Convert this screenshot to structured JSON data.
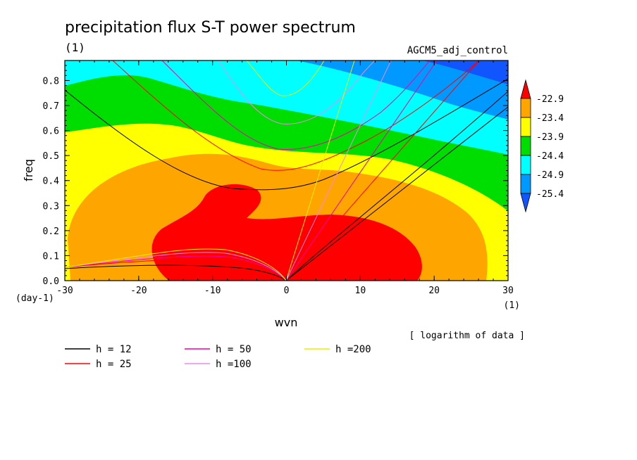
{
  "chart_data": {
    "type": "heatmap",
    "title": "precipitation flux S-T power spectrum",
    "subtitle_left": "(1)",
    "subtitle_right": "AGCM5_adj_control",
    "xlabel": "wvn",
    "ylabel": "freq",
    "x_unit": "(1)",
    "y_unit": "(day-1)",
    "note": "[ logarithm of data ]",
    "xlim": [
      -30,
      30
    ],
    "ylim": [
      0,
      0.88
    ],
    "x_ticks": [
      -30,
      -20,
      -10,
      0,
      10,
      20,
      30
    ],
    "x_tick_labels": [
      "-30",
      "-20",
      "-10",
      "0",
      "10",
      "20",
      "30"
    ],
    "y_ticks": [
      0.0,
      0.1,
      0.2,
      0.3,
      0.4,
      0.5,
      0.6,
      0.7,
      0.8
    ],
    "y_tick_labels": [
      "0.0",
      "0.1",
      "0.2",
      "0.3",
      "0.4",
      "0.5",
      "0.6",
      "0.7",
      "0.8"
    ],
    "colorbar": {
      "levels": [
        "-22.9",
        "-23.4",
        "-23.9",
        "-24.4",
        "-24.9",
        "-25.4"
      ],
      "colors": [
        "#ff0000",
        "#ffa500",
        "#ffff00",
        "#00dd00",
        "#00ffff",
        "#0099ff",
        "#1155ff"
      ]
    },
    "dispersion_curves": [
      {
        "name": "h = 12",
        "color": "#000000"
      },
      {
        "name": "h = 25",
        "color": "#ff0000"
      },
      {
        "name": "h = 50",
        "color": "#ee00aa"
      },
      {
        "name": "h =100",
        "color": "#ee88ee"
      },
      {
        "name": "h =200",
        "color": "#eeee00"
      }
    ]
  }
}
